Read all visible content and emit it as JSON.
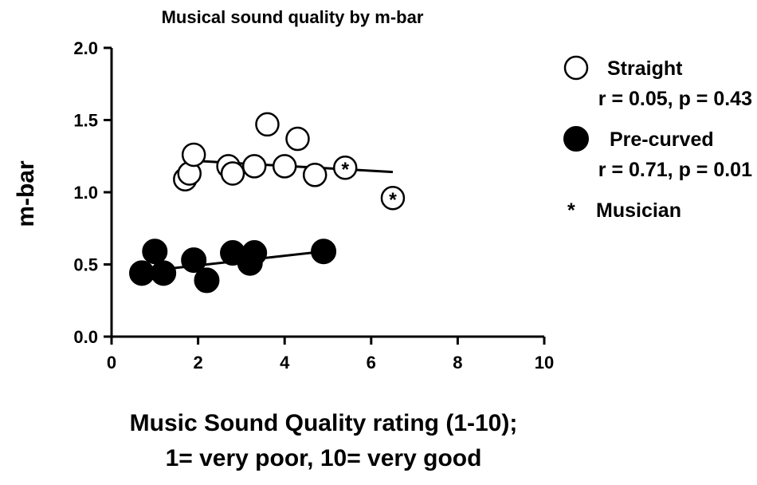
{
  "chart_data": {
    "type": "scatter",
    "title": "Musical sound quality by m-bar",
    "xlabel_lines": [
      "Music Sound Quality rating (1-10);",
      "1= very poor, 10= very good"
    ],
    "ylabel": "m-bar",
    "xlim": [
      0,
      10
    ],
    "ylim": [
      0,
      2.0
    ],
    "x_ticks": [
      "0",
      "2",
      "4",
      "6",
      "8",
      "10"
    ],
    "y_ticks": [
      "0.0",
      "0.5",
      "1.0",
      "1.5",
      "2.0"
    ],
    "grid": false,
    "legend_position": "right",
    "series": [
      {
        "name": "Straight",
        "stats": "r = 0.05, p = 0.43",
        "marker": "open-circle",
        "color": "#000000",
        "points": [
          {
            "x": 1.7,
            "y": 1.09
          },
          {
            "x": 1.8,
            "y": 1.13
          },
          {
            "x": 1.9,
            "y": 1.26
          },
          {
            "x": 2.7,
            "y": 1.18
          },
          {
            "x": 2.8,
            "y": 1.13
          },
          {
            "x": 3.3,
            "y": 1.18
          },
          {
            "x": 3.6,
            "y": 1.47
          },
          {
            "x": 4.0,
            "y": 1.18
          },
          {
            "x": 4.3,
            "y": 1.37
          },
          {
            "x": 4.7,
            "y": 1.12
          },
          {
            "x": 5.4,
            "y": 1.17,
            "musician": true
          },
          {
            "x": 6.5,
            "y": 0.96,
            "musician": true
          }
        ],
        "fit_line": {
          "x": [
            1.8,
            6.5
          ],
          "y": [
            1.22,
            1.14
          ]
        }
      },
      {
        "name": "Pre-curved",
        "stats": "r = 0.71, p = 0.01",
        "marker": "filled-circle",
        "color": "#000000",
        "points": [
          {
            "x": 0.7,
            "y": 0.44
          },
          {
            "x": 1.0,
            "y": 0.59
          },
          {
            "x": 1.2,
            "y": 0.44
          },
          {
            "x": 1.9,
            "y": 0.53
          },
          {
            "x": 2.2,
            "y": 0.39
          },
          {
            "x": 2.8,
            "y": 0.58
          },
          {
            "x": 3.2,
            "y": 0.51
          },
          {
            "x": 3.3,
            "y": 0.58
          },
          {
            "x": 4.9,
            "y": 0.59
          }
        ],
        "fit_line": {
          "x": [
            0.7,
            4.9
          ],
          "y": [
            0.45,
            0.59
          ]
        }
      }
    ],
    "annotation": {
      "symbol": "*",
      "label": "Musician"
    }
  }
}
